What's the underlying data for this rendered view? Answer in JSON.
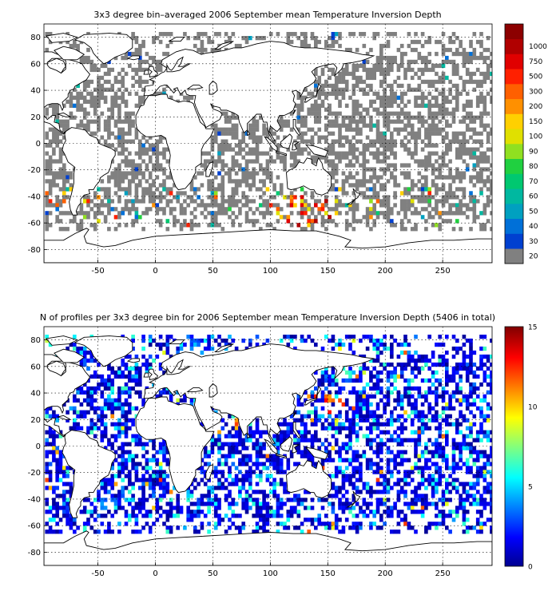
{
  "chart_data": [
    {
      "type": "heatmap",
      "title": "3x3 degree bin–averaged 2006 September mean Temperature Inversion Depth",
      "x_ticks": [
        -50,
        0,
        50,
        100,
        150,
        200,
        250
      ],
      "y_ticks": [
        80,
        60,
        40,
        20,
        0,
        -20,
        -40,
        -60,
        -80
      ],
      "xlim": [
        -97,
        293
      ],
      "ylim": [
        -90,
        90
      ],
      "grid": true,
      "colorbar": {
        "type": "categorical",
        "labels": [
          "20",
          "30",
          "40",
          "50",
          "60",
          "70",
          "80",
          "90",
          "100",
          "150",
          "200",
          "300",
          "500",
          "750",
          "1000"
        ],
        "colors": [
          "#808080",
          "#0040d0",
          "#0070d8",
          "#00a0c0",
          "#00b8a0",
          "#00c870",
          "#20d040",
          "#90e020",
          "#e0e000",
          "#ffd000",
          "#ff9000",
          "#ff6000",
          "#ff2000",
          "#e00000",
          "#b00000",
          "#8c0000"
        ]
      },
      "notes_visible": "Most ocean bins grey (lowest class); red/orange/yellow high-depth bins concentrated in the Southern Ocean between about 100 and 160 E, near 40-60 S"
    },
    {
      "type": "heatmap",
      "title": "N of profiles per 3x3 degree bin for 2006 September mean Temperature Inversion Depth  (5406 in total)",
      "x_ticks": [
        -50,
        0,
        50,
        100,
        150,
        200,
        250
      ],
      "y_ticks": [
        80,
        60,
        40,
        20,
        0,
        -20,
        -40,
        -60,
        -80
      ],
      "xlim": [
        -97,
        293
      ],
      "ylim": [
        -90,
        90
      ],
      "grid": true,
      "colorbar": {
        "type": "continuous",
        "range": [
          0,
          15
        ],
        "ticks": [
          0,
          5,
          10,
          15
        ],
        "colormap": "jet"
      },
      "notes_visible": "Most bins dark blue (1-3 profiles); highest counts (red) in the NW Pacific near 140-160 E, 30-35 N"
    }
  ]
}
